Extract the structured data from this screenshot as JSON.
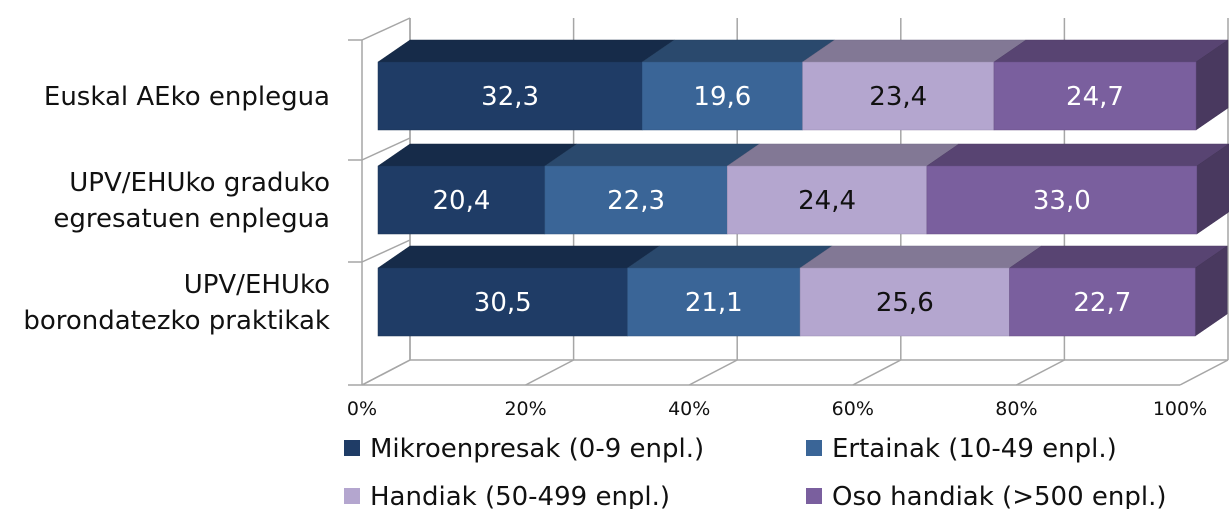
{
  "chart_data": {
    "type": "bar",
    "orientation": "horizontal",
    "stacking": "percent",
    "style": "3d",
    "categories": [
      [
        "Euskal AEko enplegua"
      ],
      [
        "UPV/EHUko graduko",
        "egresatuen enplegua"
      ],
      [
        "UPV/EHUko",
        "borondatezko praktikak"
      ]
    ],
    "series": [
      {
        "name": "Mikroenpresak (0-9 enpl.)",
        "color": "#1f3c66",
        "label_color": "#ffffff",
        "values": [
          32.3,
          20.4,
          30.5
        ],
        "labels": [
          "32,3",
          "20,4",
          "30,5"
        ]
      },
      {
        "name": "Ertainak (10-49 enpl.)",
        "color": "#3a6597",
        "label_color": "#ffffff",
        "values": [
          19.6,
          22.3,
          21.1
        ],
        "labels": [
          "19,6",
          "22,3",
          "21,1"
        ]
      },
      {
        "name": "Handiak (50-499 enpl.)",
        "color": "#b4a6cf",
        "label_color": "#111111",
        "values": [
          23.4,
          24.4,
          25.6
        ],
        "labels": [
          "23,4",
          "24,4",
          "25,6"
        ]
      },
      {
        "name": "Oso handiak (>500 enpl.)",
        "color": "#7a5f9e",
        "label_color": "#ffffff",
        "values": [
          24.7,
          33.0,
          22.7
        ],
        "labels": [
          "24,7",
          "33,0",
          "22,7"
        ]
      }
    ],
    "xlim": [
      0,
      100
    ],
    "x_ticks": [
      "0%",
      "20%",
      "40%",
      "60%",
      "80%",
      "100%"
    ],
    "grid": true,
    "legend_position": "bottom"
  }
}
